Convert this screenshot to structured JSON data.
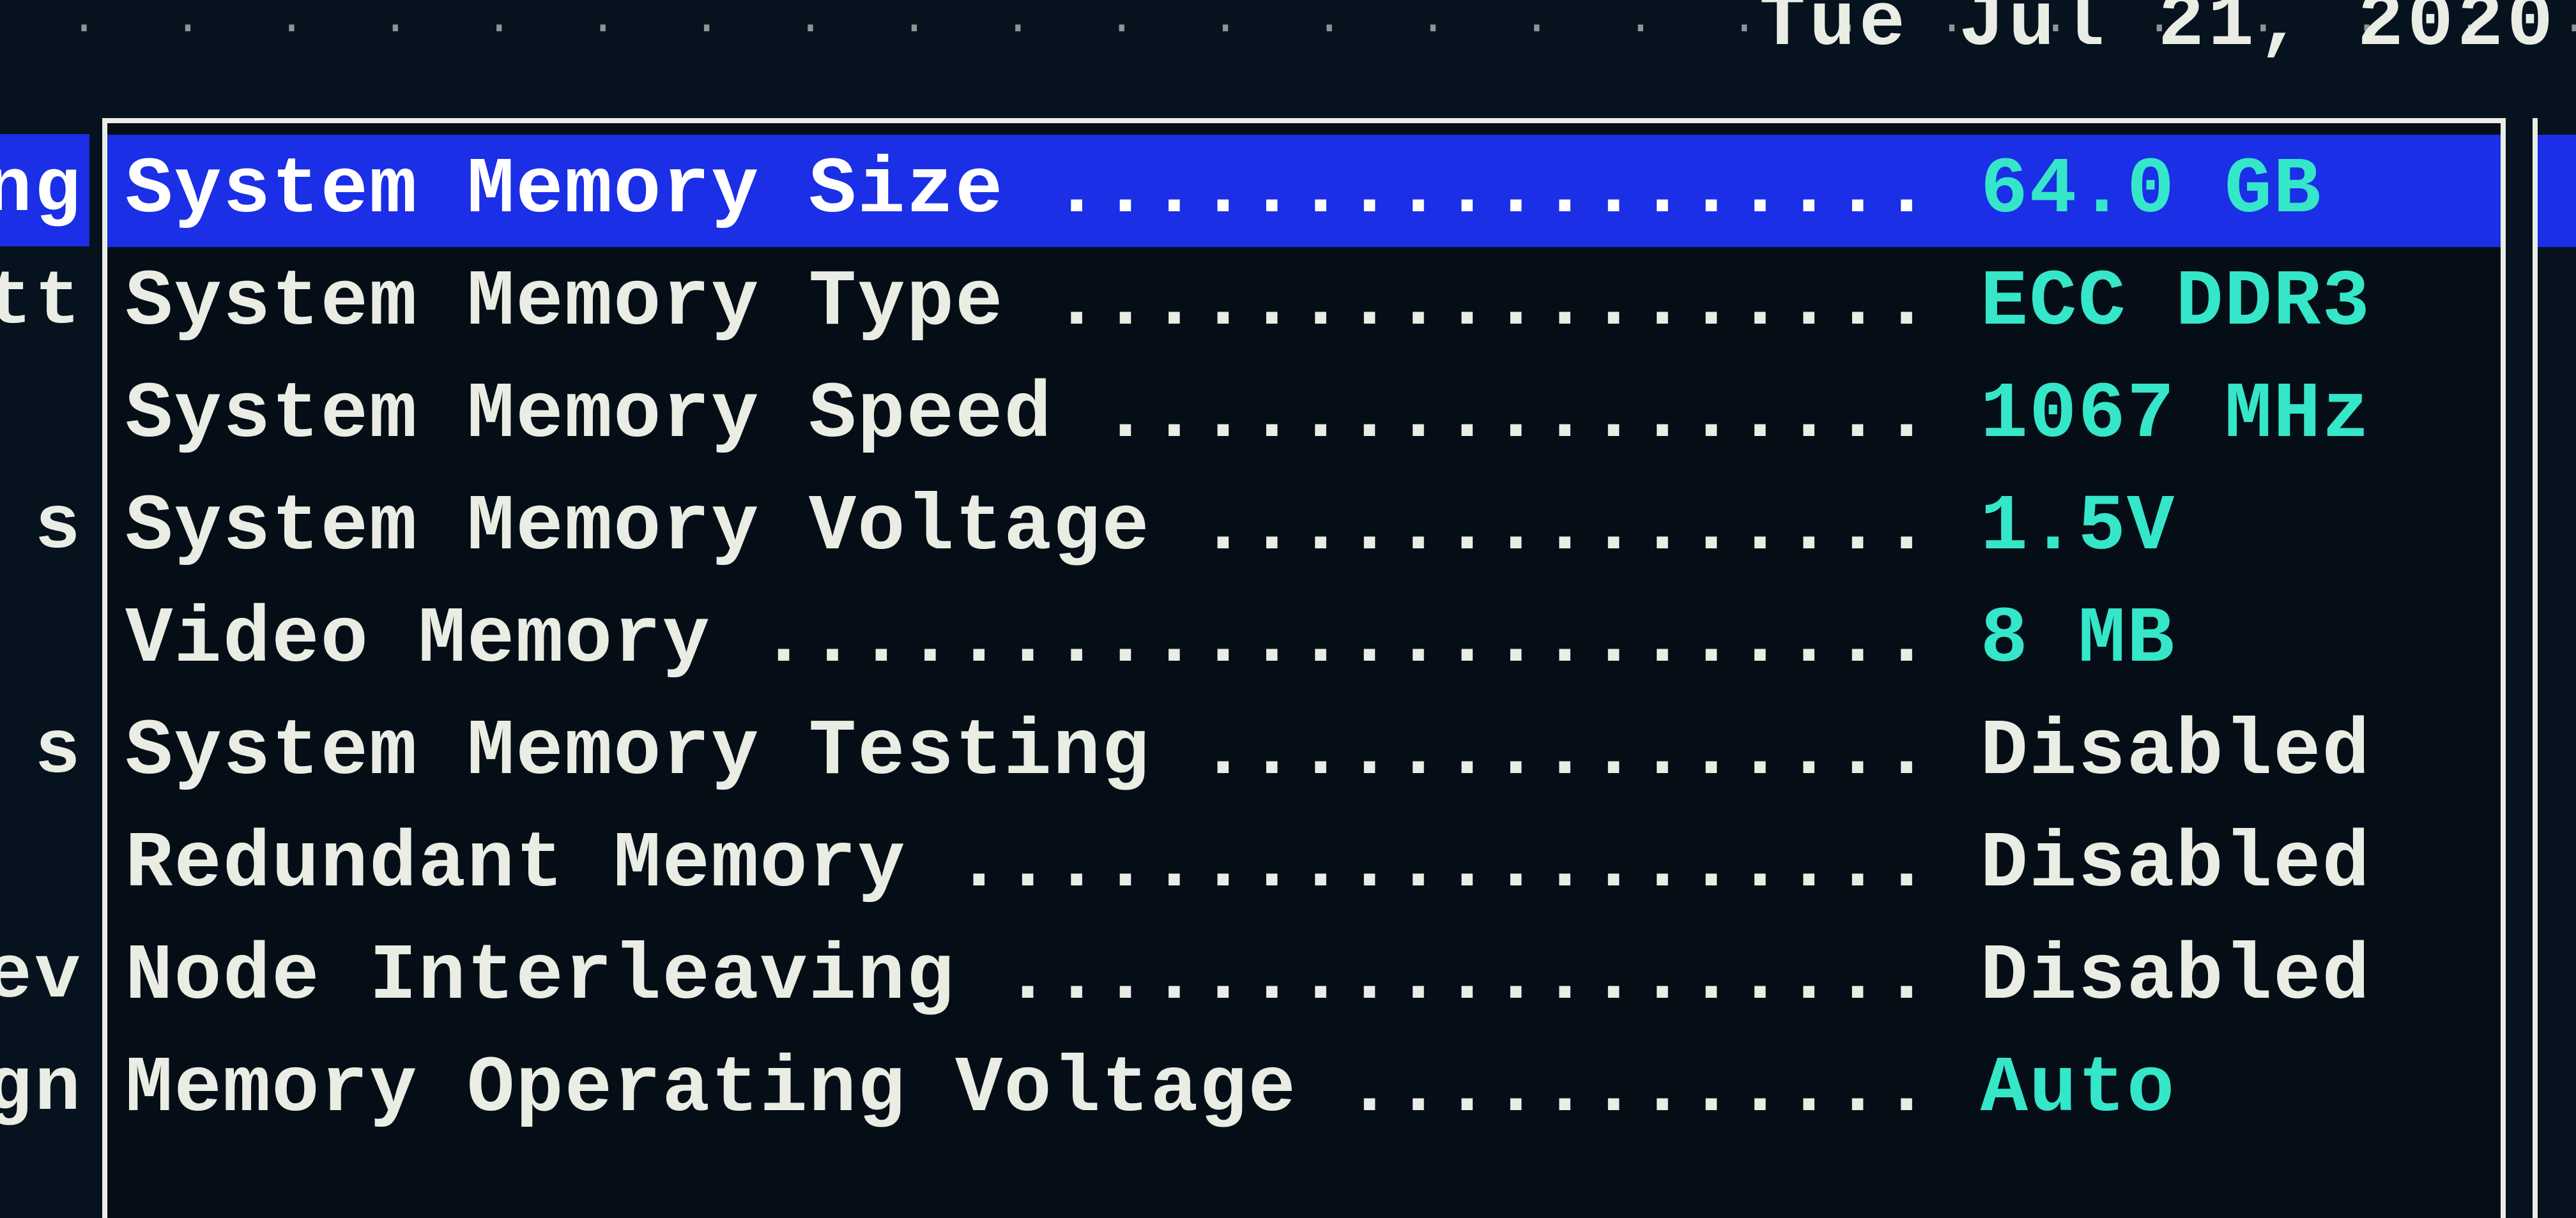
{
  "header": {
    "date_fragment": "Tue Jul 21, 2020"
  },
  "colors": {
    "bg": "#07121f",
    "panel_bg": "#050e17",
    "border": "#e9ede3",
    "text": "#e9ede3",
    "highlight_bg": "#1a2fe6",
    "highlight_text": "#ffffff",
    "info_value": "#35e6c9",
    "editable_value": "#e9ede3"
  },
  "left_menu_fragments": [
    {
      "text": "ng",
      "selected": true
    },
    {
      "text": "tt",
      "selected": false
    },
    {
      "text": "",
      "selected": false
    },
    {
      "text": "s",
      "selected": false
    },
    {
      "text": "",
      "selected": false
    },
    {
      "text": "s",
      "selected": false
    },
    {
      "text": "",
      "selected": false
    },
    {
      "text": "ev",
      "selected": false
    },
    {
      "text": "gn",
      "selected": false
    }
  ],
  "panel": {
    "label_column_chars": 25,
    "total_chars_before_value": 38,
    "rows": [
      {
        "label": "System Memory Size",
        "value": "64.0 GB",
        "value_color": "#35e6c9",
        "selected": true,
        "interactable": false
      },
      {
        "label": "System Memory Type",
        "value": "ECC DDR3",
        "value_color": "#35e6c9",
        "selected": false,
        "interactable": false
      },
      {
        "label": "System Memory Speed",
        "value": "1067 MHz",
        "value_color": "#35e6c9",
        "selected": false,
        "interactable": false
      },
      {
        "label": "System Memory Voltage",
        "value": "1.5V",
        "value_color": "#35e6c9",
        "selected": false,
        "interactable": false
      },
      {
        "label": "Video Memory",
        "value": "8 MB",
        "value_color": "#35e6c9",
        "selected": false,
        "interactable": false
      },
      {
        "label": "System Memory Testing",
        "value": "Disabled",
        "value_color": "#e9ede3",
        "selected": false,
        "interactable": true
      },
      {
        "label": "Redundant Memory",
        "value": "Disabled",
        "value_color": "#e9ede3",
        "selected": false,
        "interactable": true
      },
      {
        "label": "Node Interleaving",
        "value": "Disabled",
        "value_color": "#e9ede3",
        "selected": false,
        "interactable": true
      },
      {
        "label": "Memory Operating Voltage",
        "value": "Auto",
        "value_color": "#35e6c9",
        "selected": false,
        "interactable": true
      }
    ]
  }
}
